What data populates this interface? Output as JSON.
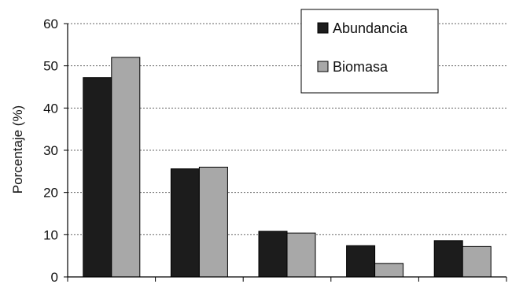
{
  "chart_data": {
    "type": "bar",
    "categories": [
      "",
      "",
      "",
      "",
      ""
    ],
    "series": [
      {
        "name": "Abundancia",
        "values": [
          47.2,
          25.6,
          10.8,
          7.4,
          8.6
        ],
        "color": "#1c1c1c"
      },
      {
        "name": "Biomasa",
        "values": [
          52.0,
          26.0,
          10.4,
          3.2,
          7.2
        ],
        "color": "#a8a8a8"
      }
    ],
    "title": "",
    "xlabel": "",
    "ylabel": "Porcentaje (%)",
    "ylim": [
      0,
      60
    ],
    "yticks": [
      0,
      10,
      20,
      30,
      40,
      50,
      60
    ],
    "grid": true,
    "legend_position": "top-right"
  }
}
